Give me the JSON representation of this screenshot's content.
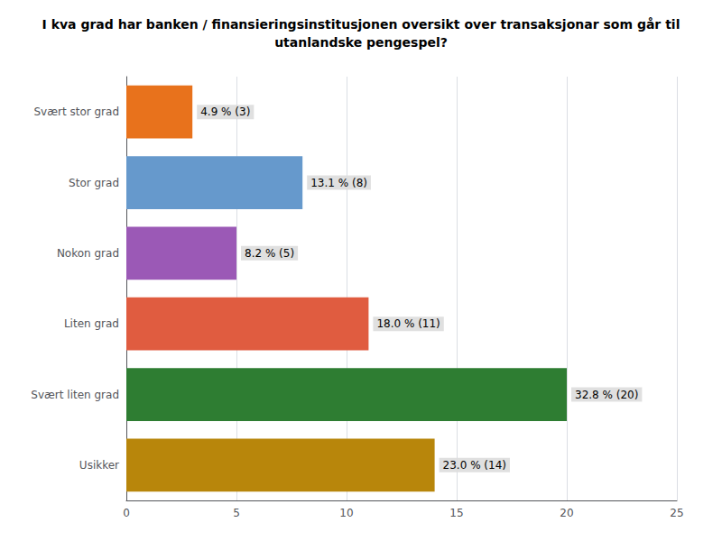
{
  "chart_data": {
    "type": "bar",
    "orientation": "horizontal",
    "title": "I kva grad har banken / finansieringsinstitusjonen oversikt over transaksjonar som går til\nutanlandske pengespel?",
    "categories": [
      "Svært stor grad",
      "Stor grad",
      "Nokon grad",
      "Liten grad",
      "Svært liten grad",
      "Usikker"
    ],
    "values": [
      3,
      8,
      5,
      11,
      20,
      14
    ],
    "value_labels": [
      "4.9 % (3)",
      "13.1 % (8)",
      "8.2 % (5)",
      "18.0 % (11)",
      "32.8 % (20)",
      "23.0 % (14)"
    ],
    "data_labels": true,
    "colors": [
      "#E8721C",
      "#6699CC",
      "#9B59B6",
      "#E05C40",
      "#2E7D32",
      "#B8860B"
    ],
    "xlim": [
      0,
      25
    ],
    "xticks": [
      0,
      5,
      10,
      15,
      20,
      25
    ],
    "grid": true
  }
}
